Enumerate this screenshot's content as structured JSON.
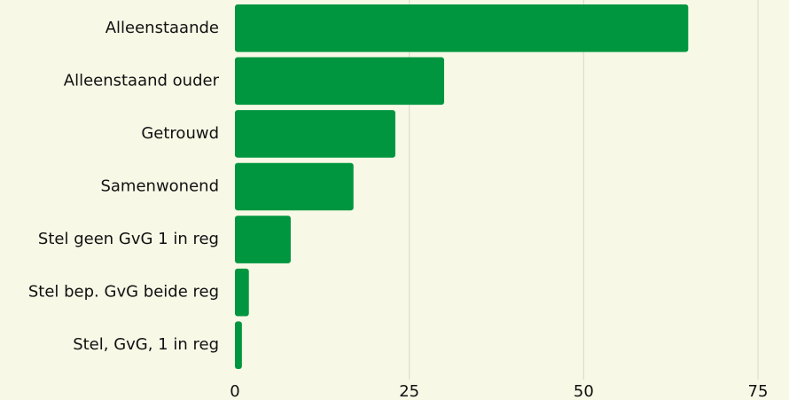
{
  "chart_data": {
    "type": "bar",
    "orientation": "horizontal",
    "categories": [
      "Alleenstaande",
      "Alleenstaand ouder",
      "Getrouwd",
      "Samenwonend",
      "Stel geen GvG 1 in reg",
      "Stel bep. GvG beide reg",
      "Stel, GvG, 1 in reg"
    ],
    "values": [
      65,
      30,
      23,
      17,
      8,
      2,
      1
    ],
    "color": "#00963f",
    "xlim": [
      0,
      75
    ],
    "xticks": [
      0,
      25,
      50,
      75
    ],
    "grid": true
  }
}
